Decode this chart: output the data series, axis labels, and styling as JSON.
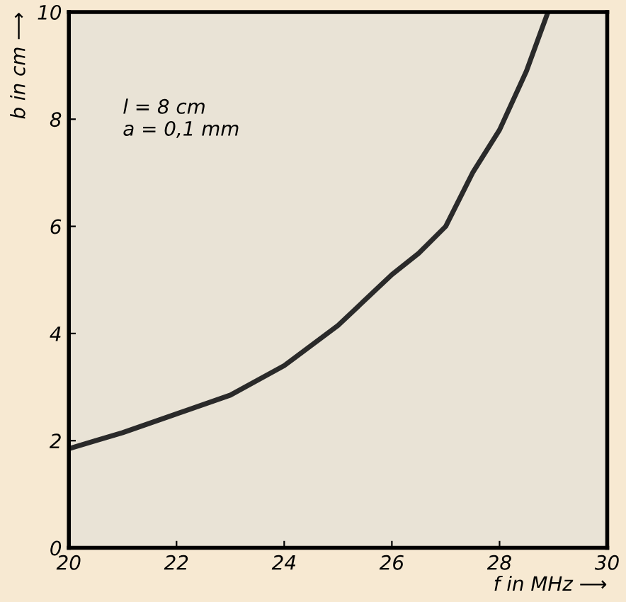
{
  "chart_data": {
    "type": "line",
    "xlabel": "f in MHz ⟶",
    "ylabel": "b in cm ⟶",
    "x": [
      20,
      20.5,
      21,
      22,
      23,
      24,
      25,
      26,
      26.5,
      27,
      27.5,
      28,
      28.5,
      28.9
    ],
    "series": [
      {
        "color": "#2a2a2a",
        "values": [
          1.85,
          2.0,
          2.15,
          2.5,
          2.85,
          3.4,
          4.15,
          5.1,
          5.5,
          6.0,
          7.0,
          7.8,
          8.9,
          10
        ]
      }
    ],
    "annotations": [
      "l = 8 cm\na = 0,1 mm"
    ],
    "xlim": [
      20,
      30
    ],
    "xticks": [
      20,
      22,
      24,
      26,
      28,
      30
    ],
    "ylim": [
      0,
      10
    ],
    "yticks": [
      0,
      2,
      4,
      6,
      8,
      10
    ],
    "grid": false,
    "marker": "none",
    "line_style": "solid"
  }
}
